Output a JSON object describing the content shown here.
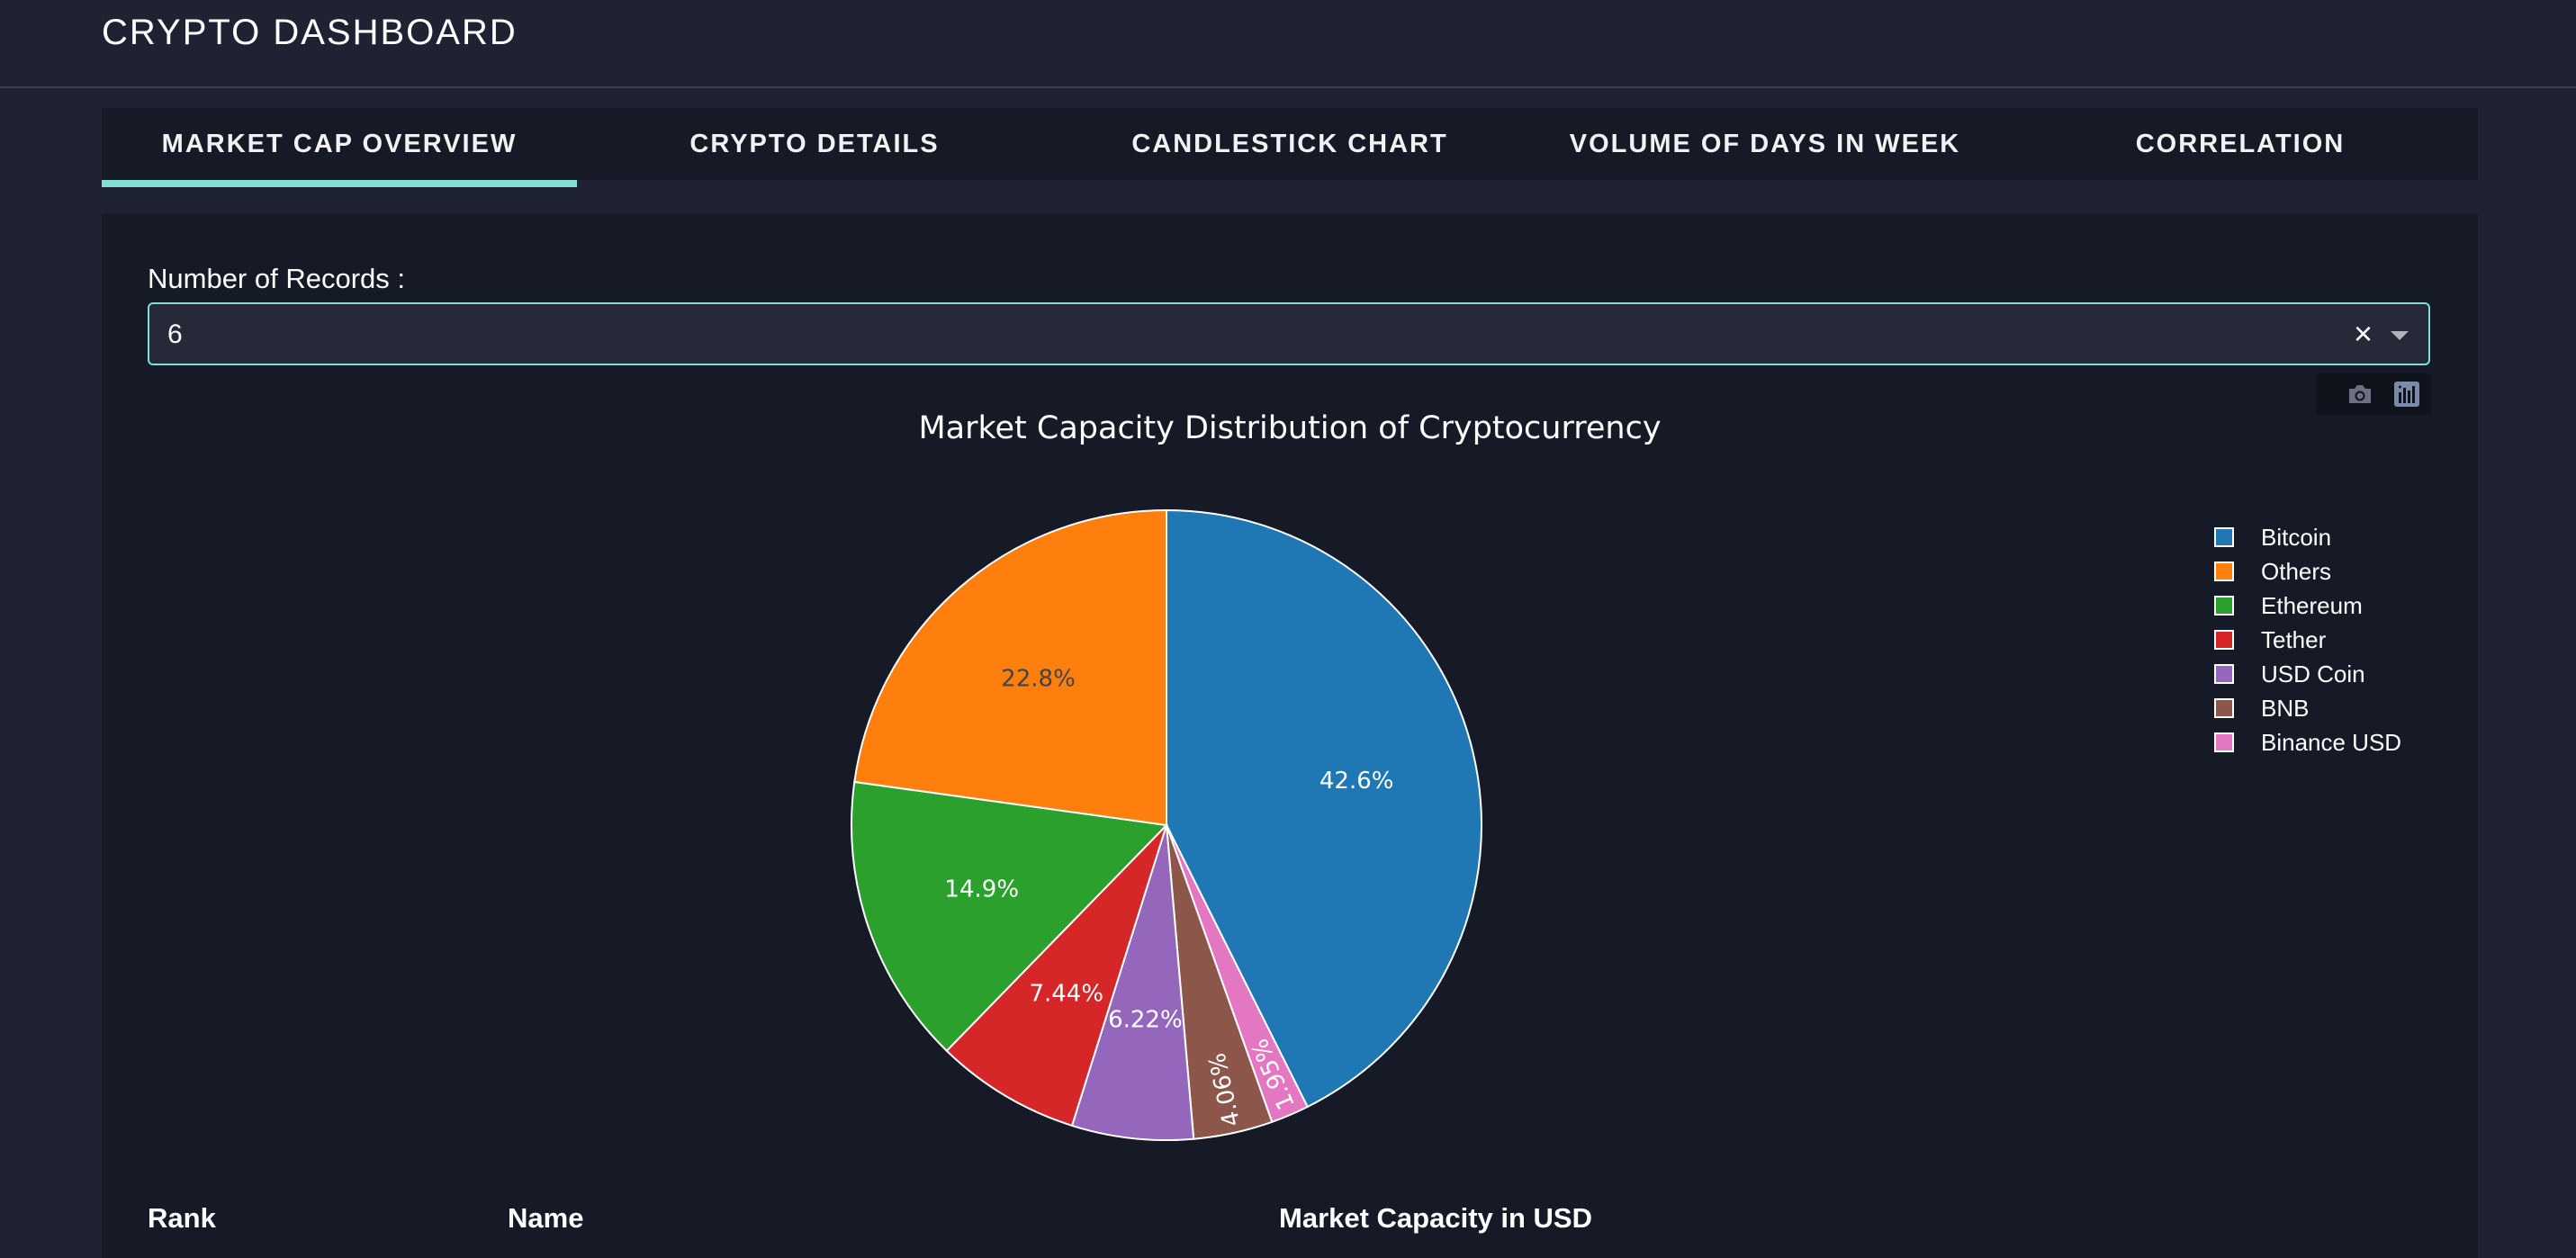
{
  "app": {
    "title": "CRYPTO DASHBOARD"
  },
  "tabs": [
    {
      "label": "MARKET CAP OVERVIEW",
      "active": true
    },
    {
      "label": "CRYPTO DETAILS",
      "active": false
    },
    {
      "label": "CANDLESTICK CHART",
      "active": false
    },
    {
      "label": "VOLUME OF DAYS IN WEEK",
      "active": false
    },
    {
      "label": "CORRELATION",
      "active": false
    }
  ],
  "records": {
    "label": "Number of Records :",
    "value": "6",
    "clear_glyph": "×"
  },
  "modebar": {
    "icons": [
      "camera-icon",
      "plotly-logo-icon"
    ]
  },
  "chart_data": {
    "type": "pie",
    "title": "Market Capacity Distribution of Cryptocurrency",
    "legend_position": "top-right",
    "slices": [
      {
        "name": "Bitcoin",
        "value": 42.6,
        "label": "42.6%",
        "color": "#1f77b4"
      },
      {
        "name": "Others",
        "value": 22.8,
        "label": "22.8%",
        "color": "#ff7f0e"
      },
      {
        "name": "Ethereum",
        "value": 14.9,
        "label": "14.9%",
        "color": "#2ca02c"
      },
      {
        "name": "Tether",
        "value": 7.44,
        "label": "7.44%",
        "color": "#d62728"
      },
      {
        "name": "USD Coin",
        "value": 6.22,
        "label": "6.22%",
        "color": "#9467bd"
      },
      {
        "name": "BNB",
        "value": 4.06,
        "label": "4.06%",
        "color": "#8c564b"
      },
      {
        "name": "Binance USD",
        "value": 1.95,
        "label": "1.95%",
        "color": "#e377c2"
      }
    ],
    "order": [
      "Bitcoin",
      "Binance USD",
      "BNB",
      "USD Coin",
      "Tether",
      "Ethereum",
      "Others"
    ]
  },
  "table": {
    "headers": [
      "Rank",
      "Name",
      "Market Capacity in USD"
    ]
  }
}
